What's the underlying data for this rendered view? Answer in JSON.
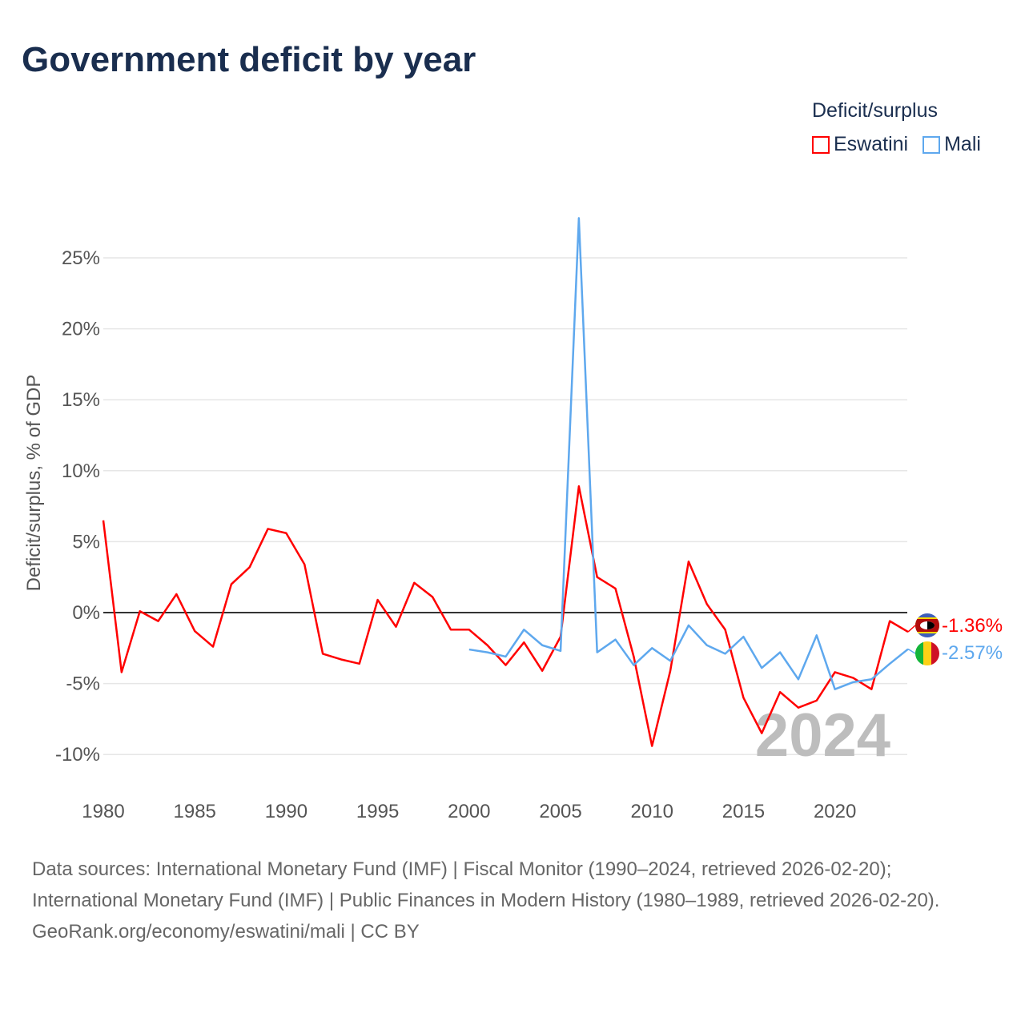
{
  "title": "Government deficit by year",
  "legend": {
    "title": "Deficit/surplus",
    "items": [
      {
        "label": "Eswatini",
        "color": "#ff0000"
      },
      {
        "label": "Mali",
        "color": "#5ea8ee"
      }
    ]
  },
  "chart_data": {
    "type": "line",
    "title": "Government deficit by year",
    "xlabel": "",
    "ylabel": "Deficit/surplus, % of GDP",
    "xlim": [
      1980,
      2024
    ],
    "ylim": [
      -12,
      30
    ],
    "x_ticks": [
      1980,
      1985,
      1990,
      1995,
      2000,
      2005,
      2010,
      2015,
      2020
    ],
    "y_ticks": [
      -10,
      -5,
      0,
      5,
      10,
      15,
      20,
      25
    ],
    "y_tick_labels": [
      "-10%",
      "-5%",
      "0%",
      "5%",
      "10%",
      "15%",
      "20%",
      "25%"
    ],
    "grid": true,
    "legend_position": "top-right",
    "watermark_year": "2024",
    "series": [
      {
        "name": "Eswatini",
        "color": "#ff0000",
        "end_label": "-1.36%",
        "x_start": 1980,
        "values": [
          6.5,
          -4.2,
          0.1,
          -0.6,
          1.3,
          -1.3,
          -2.4,
          2.0,
          3.2,
          5.9,
          5.6,
          3.4,
          -2.9,
          -3.3,
          -3.6,
          0.9,
          -1.0,
          2.1,
          1.1,
          -1.2,
          -1.2,
          -2.3,
          -3.7,
          -2.1,
          -4.1,
          -1.7,
          8.9,
          2.5,
          1.7,
          -3.1,
          -9.4,
          -4.1,
          3.6,
          0.6,
          -1.2,
          -6.0,
          -8.5,
          -5.6,
          -6.7,
          -6.2,
          -4.2,
          -4.6,
          -5.4,
          -0.6,
          -1.36
        ]
      },
      {
        "name": "Mali",
        "color": "#5ea8ee",
        "end_label": "-2.57%",
        "x_start": 2000,
        "values": [
          -2.6,
          -2.8,
          -3.1,
          -1.2,
          -2.3,
          -2.7,
          27.8,
          -2.8,
          -1.9,
          -3.7,
          -2.5,
          -3.4,
          -0.9,
          -2.3,
          -2.9,
          -1.7,
          -3.9,
          -2.8,
          -4.7,
          -1.6,
          -5.4,
          -4.9,
          -4.7,
          -3.6,
          -2.57
        ]
      }
    ]
  },
  "sources": {
    "line1": "Data sources: International Monetary Fund (IMF) | Fiscal Monitor (1990–2024, retrieved 2026-02-20); International Monetary Fund (IMF) | Public Finances in Modern History (1980–1989, retrieved 2026-02-20).",
    "line2": "GeoRank.org/economy/eswatini/mali | CC BY"
  }
}
